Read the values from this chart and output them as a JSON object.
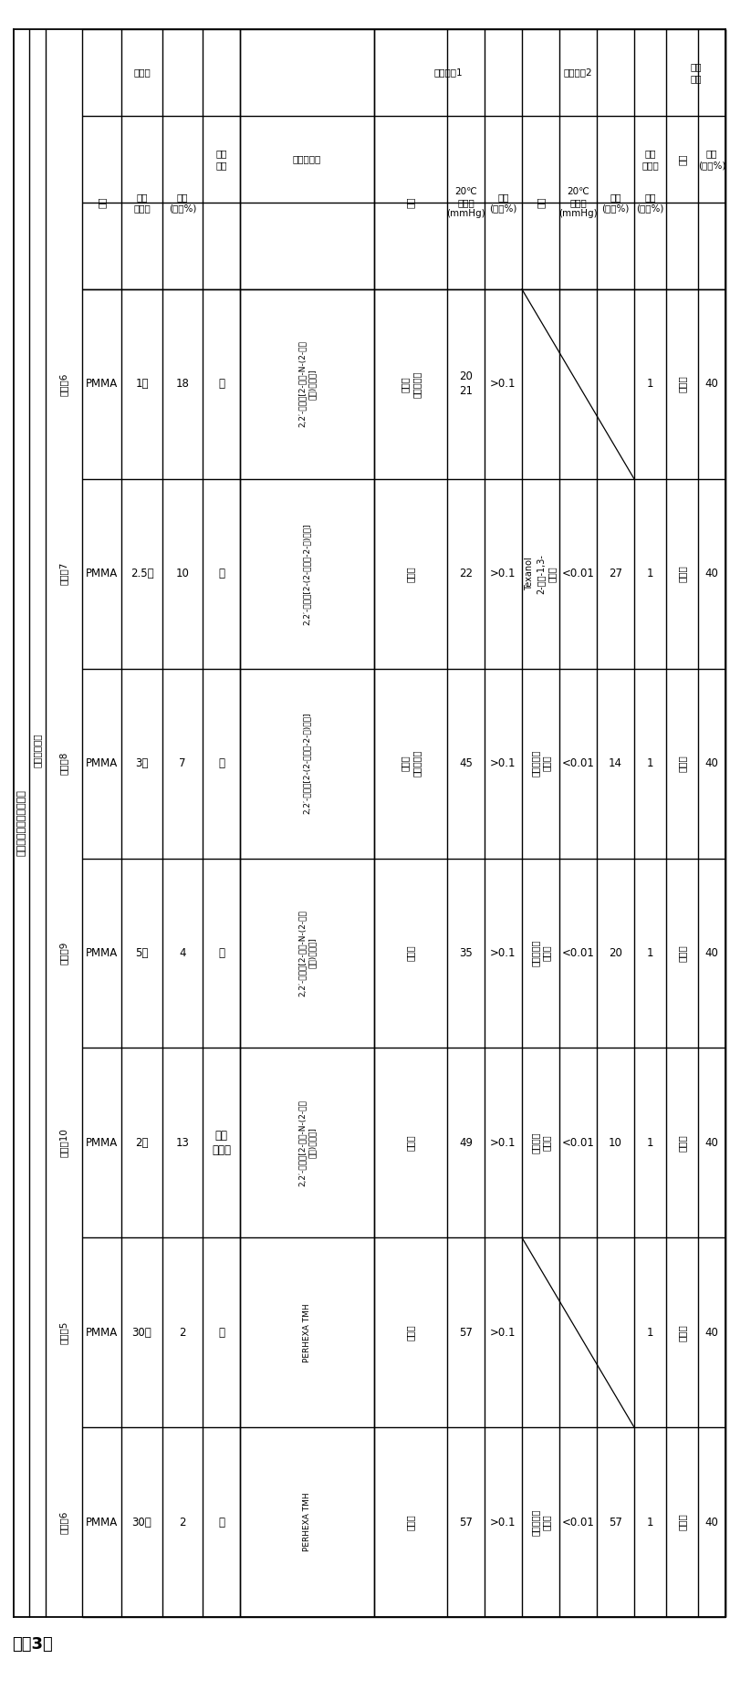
{
  "title": "【表3】",
  "bg_color": "#ffffff",
  "rows": [
    {
      "label": "实施外6",
      "binder_type": "PMMA",
      "binder_mw": "1万",
      "binder_content": "18",
      "chain_transfer": "－",
      "initiator": "2,2′-偶氮双[2-甲基-N-(2-羟基\n乙基)丙酯胺]",
      "sol1_type": "萨品醇\n乙酸松油酵",
      "sol1_vp": "20\n21",
      "sol1_content": ">0.1",
      "sol2_type": "",
      "sol2_vp": "",
      "sol2_content": "",
      "has_sol2": false,
      "surfactant": "1",
      "inorg_type": "荪光体",
      "inorg_content": "40"
    },
    {
      "label": "实施外7",
      "binder_type": "PMMA",
      "binder_mw": "2.5万",
      "binder_content": "10",
      "chain_transfer": "－",
      "initiator": "2,2′-偶氮双[2-(2-咊唠啐-2-基)丙烷]",
      "sol1_type": "萨品醇",
      "sol1_vp": "22",
      "sol1_content": ">0.1",
      "sol2_type": "Texanol\n2-乙基-1,3-\n己二醇",
      "sol2_vp": "<0.01",
      "sol2_content": "27",
      "has_sol2": true,
      "surfactant": "1",
      "inorg_type": "荪光体",
      "inorg_content": "40"
    },
    {
      "label": "实施外8",
      "binder_type": "PMMA",
      "binder_mw": "3万",
      "binder_content": "7",
      "chain_transfer": "－",
      "initiator": "2,2′-偶氮双[2-(2-咊唠啐-2-基)丙烷]",
      "sol1_type": "萨品醇\n乙酸松油酵",
      "sol1_vp": "45",
      "sol1_content": ">0.1",
      "sol2_type": "丁基卡必醇\n乙酸酯",
      "sol2_vp": "<0.01",
      "sol2_content": "14",
      "has_sol2": true,
      "surfactant": "1",
      "inorg_type": "荪光体",
      "inorg_content": "40"
    },
    {
      "label": "实施外9",
      "binder_type": "PMMA",
      "binder_mw": "5万",
      "binder_content": "4",
      "chain_transfer": "－",
      "initiator": "2,2′-偶氮双[2-甲基-N-(2-羟基\n乙基)丙酯胺]",
      "sol1_type": "萨品醇",
      "sol1_vp": "35",
      "sol1_content": ">0.1",
      "sol2_type": "丁基卡必醇\n乙酸酯",
      "sol2_vp": "<0.01",
      "sol2_content": "20",
      "has_sol2": true,
      "surfactant": "1",
      "inorg_type": "荪光体",
      "inorg_content": "40"
    },
    {
      "label": "实施酡10",
      "binder_type": "PMMA",
      "binder_mw": "2万",
      "binder_content": "13",
      "chain_transfer": "氨基\n乙硪醇",
      "initiator": "2,2′-偶氮双[2-甲基-N-(2-羟基\n乙基)丙酯胺]",
      "sol1_type": "萨品醇",
      "sol1_vp": "49",
      "sol1_content": ">0.1",
      "sol2_type": "丙二醇单\n苯基醚",
      "sol2_vp": "<0.01",
      "sol2_content": "10",
      "has_sol2": true,
      "surfactant": "1",
      "inorg_type": "荪光体",
      "inorg_content": "40"
    },
    {
      "label": "比较外5",
      "binder_type": "PMMA",
      "binder_mw": "30万",
      "binder_content": "2",
      "chain_transfer": "－",
      "initiator": "PERHEXA TMH",
      "sol1_type": "萨品醇",
      "sol1_vp": "57",
      "sol1_content": ">0.1",
      "sol2_type": "",
      "sol2_vp": "",
      "sol2_content": "",
      "has_sol2": false,
      "surfactant": "1",
      "inorg_type": "荪光体",
      "inorg_content": "40"
    },
    {
      "label": "比较外6",
      "binder_type": "PMMA",
      "binder_mw": "30万",
      "binder_content": "2",
      "chain_transfer": "－",
      "initiator": "PERHEXA TMH",
      "sol1_type": "萨品醇",
      "sol1_vp": "57",
      "sol1_content": ">0.1",
      "sol2_type": "丁基卡必醇\n乙酸酯",
      "sol2_vp": "<0.01",
      "sol2_content": "57",
      "has_sol2": true,
      "surfactant": "1",
      "inorg_type": "荪光体",
      "inorg_content": "40"
    }
  ]
}
